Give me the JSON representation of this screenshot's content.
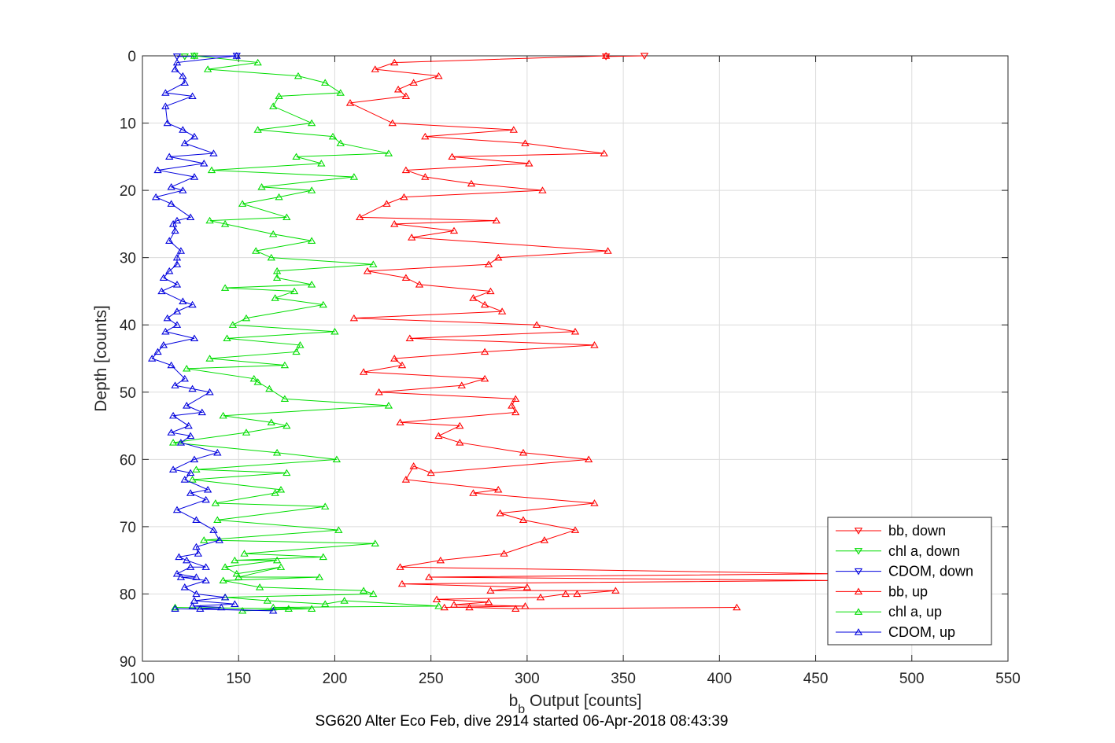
{
  "chart_data": {
    "type": "line",
    "title": "SG620 Alter Eco Feb, dive 2914 started 06-Apr-2018 08:43:39",
    "xlabel_main": "b",
    "xlabel_sub": "b",
    "xlabel_rest": "Output [counts]",
    "ylabel": "Depth [counts]",
    "xlim": [
      100,
      550
    ],
    "ylim": [
      0,
      90
    ],
    "y_reversed": true,
    "grid": true,
    "legend_position": "bottom-right",
    "x_ticks": [
      "100",
      "150",
      "200",
      "250",
      "300",
      "350",
      "400",
      "450",
      "500",
      "550"
    ],
    "y_ticks": [
      "0",
      "10",
      "20",
      "30",
      "40",
      "50",
      "60",
      "70",
      "80",
      "90"
    ],
    "series": [
      {
        "name": "bb, down",
        "color": "#ff0000",
        "marker": "triangle-down",
        "points": [
          [
            361,
            0
          ],
          [
            341,
            0.1
          ]
        ]
      },
      {
        "name": "chl a, down",
        "color": "#00dd00",
        "marker": "triangle-down",
        "points": [
          [
            127,
            0
          ],
          [
            122,
            0.1
          ]
        ]
      },
      {
        "name": "CDOM, down",
        "color": "#0000dd",
        "marker": "triangle-down",
        "points": [
          [
            149,
            0
          ],
          [
            118,
            0.1
          ]
        ]
      },
      {
        "name": "bb, up",
        "color": "#ff0000",
        "marker": "triangle-up",
        "points": [
          [
            341,
            0
          ],
          [
            231,
            1
          ],
          [
            221,
            2
          ],
          [
            254,
            3
          ],
          [
            241,
            4
          ],
          [
            233,
            5
          ],
          [
            237,
            6
          ],
          [
            208,
            7
          ],
          [
            230,
            10
          ],
          [
            293,
            11
          ],
          [
            247,
            12
          ],
          [
            299,
            13
          ],
          [
            340,
            14.5
          ],
          [
            261,
            15
          ],
          [
            301,
            16
          ],
          [
            237,
            17
          ],
          [
            247,
            18
          ],
          [
            271,
            19
          ],
          [
            308,
            20
          ],
          [
            236,
            21
          ],
          [
            227,
            22
          ],
          [
            213,
            24
          ],
          [
            284,
            24.5
          ],
          [
            231,
            25
          ],
          [
            262,
            26
          ],
          [
            240,
            27
          ],
          [
            342,
            29
          ],
          [
            285,
            30
          ],
          [
            280,
            31
          ],
          [
            217,
            32
          ],
          [
            237,
            33
          ],
          [
            244,
            34
          ],
          [
            281,
            35
          ],
          [
            272,
            36
          ],
          [
            278,
            37
          ],
          [
            287,
            38
          ],
          [
            210,
            39
          ],
          [
            305,
            40
          ],
          [
            325,
            41
          ],
          [
            239,
            42
          ],
          [
            335,
            43
          ],
          [
            278,
            44
          ],
          [
            231,
            45
          ],
          [
            235,
            46
          ],
          [
            215,
            47
          ],
          [
            278,
            48
          ],
          [
            266,
            49
          ],
          [
            223,
            50
          ],
          [
            294,
            51
          ],
          [
            292,
            52
          ],
          [
            294,
            53
          ],
          [
            234,
            54.5
          ],
          [
            265,
            55
          ],
          [
            254,
            56.5
          ],
          [
            265,
            57.5
          ],
          [
            298,
            59
          ],
          [
            332,
            60
          ],
          [
            250,
            62
          ],
          [
            241,
            61
          ],
          [
            237,
            63
          ],
          [
            285,
            64.5
          ],
          [
            272,
            65
          ],
          [
            335,
            66.5
          ],
          [
            286,
            68
          ],
          [
            298,
            69
          ],
          [
            325,
            70.5
          ],
          [
            309,
            72
          ],
          [
            288,
            74
          ],
          [
            255,
            75
          ],
          [
            234,
            76
          ],
          [
            460,
            77
          ],
          [
            249,
            77.5
          ],
          [
            460,
            78
          ],
          [
            235,
            78.5
          ],
          [
            300,
            79
          ],
          [
            281,
            79.5
          ],
          [
            346,
            79.5
          ],
          [
            326,
            80
          ],
          [
            320,
            80
          ],
          [
            307,
            80.5
          ],
          [
            253,
            80.8
          ],
          [
            280,
            81.2
          ],
          [
            262,
            81.6
          ],
          [
            299,
            81.8
          ],
          [
            257,
            82
          ],
          [
            270,
            82
          ],
          [
            294,
            82.2
          ],
          [
            409,
            82
          ]
        ]
      },
      {
        "name": "chl a, up",
        "color": "#00dd00",
        "marker": "triangle-up",
        "points": [
          [
            127,
            0
          ],
          [
            160,
            1
          ],
          [
            134,
            2
          ],
          [
            181,
            3
          ],
          [
            195,
            4
          ],
          [
            203,
            5.5
          ],
          [
            171,
            6
          ],
          [
            168,
            7.5
          ],
          [
            188,
            10
          ],
          [
            160,
            11
          ],
          [
            199,
            12
          ],
          [
            203,
            13
          ],
          [
            228,
            14.5
          ],
          [
            180,
            15
          ],
          [
            193,
            16
          ],
          [
            136,
            17
          ],
          [
            210,
            18
          ],
          [
            162,
            19.5
          ],
          [
            188,
            20
          ],
          [
            171,
            21
          ],
          [
            152,
            22
          ],
          [
            175,
            24
          ],
          [
            135,
            24.5
          ],
          [
            143,
            25
          ],
          [
            168,
            26.5
          ],
          [
            188,
            27.5
          ],
          [
            159,
            29
          ],
          [
            167,
            30
          ],
          [
            220,
            31
          ],
          [
            170,
            32
          ],
          [
            170,
            33
          ],
          [
            188,
            34
          ],
          [
            143,
            34.5
          ],
          [
            179,
            35
          ],
          [
            169,
            36
          ],
          [
            194,
            37
          ],
          [
            154,
            39
          ],
          [
            147,
            40
          ],
          [
            200,
            41
          ],
          [
            144,
            42
          ],
          [
            182,
            43
          ],
          [
            180,
            44
          ],
          [
            135,
            45
          ],
          [
            174,
            46
          ],
          [
            123,
            46.5
          ],
          [
            158,
            48
          ],
          [
            160,
            48.5
          ],
          [
            166,
            49.5
          ],
          [
            174,
            51
          ],
          [
            228,
            52
          ],
          [
            142,
            53.5
          ],
          [
            167,
            54.5
          ],
          [
            175,
            55
          ],
          [
            154,
            56
          ],
          [
            116,
            57.5
          ],
          [
            170,
            59
          ],
          [
            201,
            60
          ],
          [
            128,
            61.5
          ],
          [
            175,
            62
          ],
          [
            126,
            63
          ],
          [
            172,
            64.5
          ],
          [
            169,
            65
          ],
          [
            138,
            66.5
          ],
          [
            195,
            67
          ],
          [
            139,
            69
          ],
          [
            202,
            70.5
          ],
          [
            132,
            72
          ],
          [
            221,
            72.5
          ],
          [
            153,
            74
          ],
          [
            194,
            74.5
          ],
          [
            148,
            75
          ],
          [
            170,
            75
          ],
          [
            143,
            76
          ],
          [
            149,
            77
          ],
          [
            172,
            76
          ],
          [
            150,
            77.5
          ],
          [
            192,
            77.5
          ],
          [
            142,
            78
          ],
          [
            161,
            79
          ],
          [
            215,
            79.5
          ],
          [
            220,
            80
          ],
          [
            143,
            80.5
          ],
          [
            165,
            81
          ],
          [
            195,
            81.5
          ],
          [
            205,
            81
          ],
          [
            254,
            81.8
          ],
          [
            168,
            82
          ],
          [
            188,
            82.2
          ],
          [
            152,
            82.5
          ],
          [
            176,
            82.2
          ],
          [
            117,
            82
          ]
        ]
      },
      {
        "name": "CDOM, up",
        "color": "#0000dd",
        "marker": "triangle-up",
        "points": [
          [
            149,
            0
          ],
          [
            118,
            1
          ],
          [
            117,
            2
          ],
          [
            121,
            3
          ],
          [
            122,
            4
          ],
          [
            112,
            5.5
          ],
          [
            126,
            6
          ],
          [
            112,
            7.5
          ],
          [
            113,
            10
          ],
          [
            121,
            11
          ],
          [
            127,
            12
          ],
          [
            122,
            13
          ],
          [
            137,
            14.5
          ],
          [
            114,
            15
          ],
          [
            132,
            16
          ],
          [
            108,
            17
          ],
          [
            127,
            18
          ],
          [
            115,
            19.5
          ],
          [
            121,
            20
          ],
          [
            107,
            21
          ],
          [
            115,
            22
          ],
          [
            125,
            24
          ],
          [
            118,
            24.5
          ],
          [
            116,
            25
          ],
          [
            117,
            26
          ],
          [
            114,
            27.5
          ],
          [
            120,
            29
          ],
          [
            118,
            30
          ],
          [
            118,
            31
          ],
          [
            114,
            32
          ],
          [
            111,
            33
          ],
          [
            118,
            34
          ],
          [
            110,
            35
          ],
          [
            121,
            36.5
          ],
          [
            126,
            37
          ],
          [
            118,
            38
          ],
          [
            113,
            39
          ],
          [
            118,
            40
          ],
          [
            112,
            41
          ],
          [
            127,
            42
          ],
          [
            111,
            43
          ],
          [
            108,
            44
          ],
          [
            105,
            45
          ],
          [
            115,
            46
          ],
          [
            122,
            48
          ],
          [
            117,
            49
          ],
          [
            126,
            49.5
          ],
          [
            135,
            50
          ],
          [
            123,
            52
          ],
          [
            131,
            53
          ],
          [
            116,
            53.5
          ],
          [
            124,
            55
          ],
          [
            115,
            56
          ],
          [
            125,
            56.5
          ],
          [
            120,
            57.5
          ],
          [
            139,
            59
          ],
          [
            127,
            60
          ],
          [
            116,
            61.5
          ],
          [
            125,
            62
          ],
          [
            122,
            63
          ],
          [
            134,
            64.5
          ],
          [
            125,
            65
          ],
          [
            133,
            66
          ],
          [
            118,
            67.5
          ],
          [
            128,
            69
          ],
          [
            137,
            70.5
          ],
          [
            140,
            72
          ],
          [
            128,
            73
          ],
          [
            129,
            74
          ],
          [
            119,
            74.5
          ],
          [
            123,
            75
          ],
          [
            133,
            76
          ],
          [
            125,
            76
          ],
          [
            118,
            77
          ],
          [
            128,
            77.5
          ],
          [
            120,
            77.5
          ],
          [
            133,
            78
          ],
          [
            122,
            79
          ],
          [
            128,
            80
          ],
          [
            143,
            80.5
          ],
          [
            127,
            81
          ],
          [
            148,
            81.5
          ],
          [
            126,
            81.8
          ],
          [
            141,
            82
          ],
          [
            130,
            82.2
          ],
          [
            168,
            82.5
          ],
          [
            117,
            82.2
          ]
        ]
      }
    ]
  }
}
